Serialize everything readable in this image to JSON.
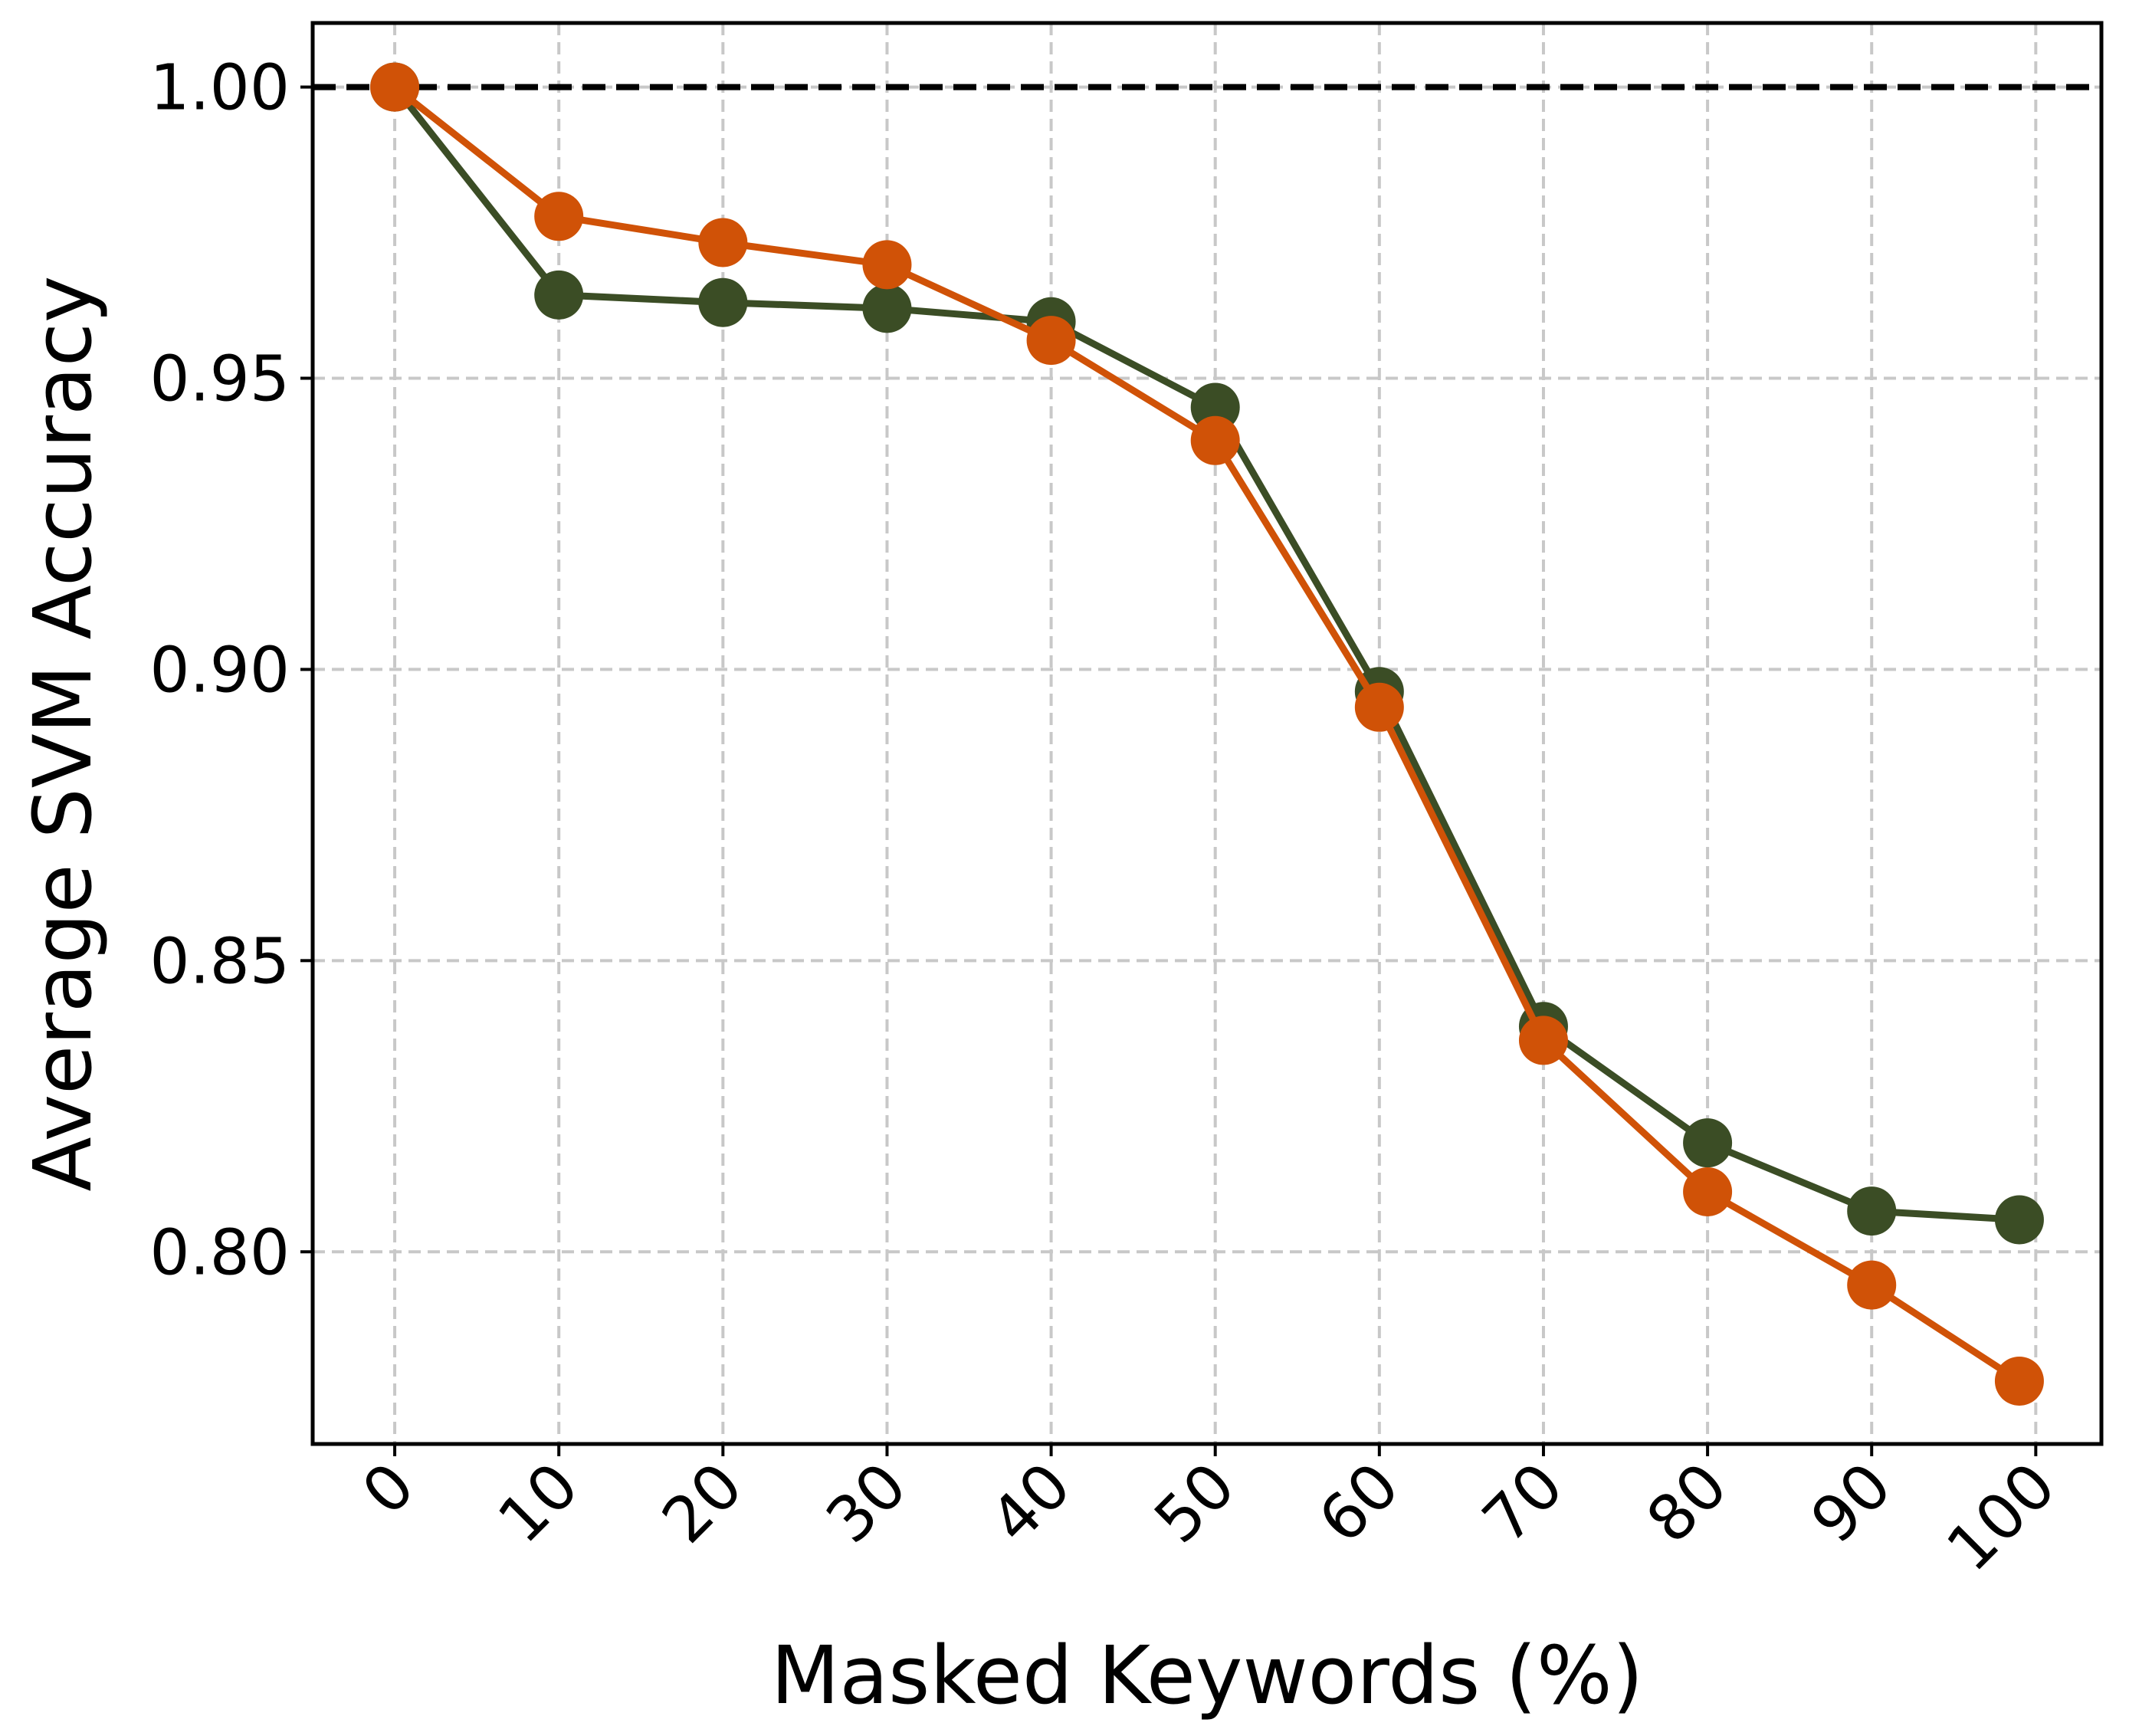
{
  "chart_data": {
    "type": "line",
    "xlabel": "Masked Keywords (%)",
    "ylabel": "Average SVM Accuracy",
    "x_ticks": [
      "0",
      "10",
      "20",
      "30",
      "40",
      "50",
      "60",
      "70",
      "80",
      "90",
      "100"
    ],
    "y_ticks": [
      "0.80",
      "0.85",
      "0.90",
      "0.95",
      "1.00"
    ],
    "xlim": [
      -5,
      104
    ],
    "ylim": [
      0.767,
      1.011
    ],
    "grid": true,
    "reference_line": {
      "y": 1.0,
      "style": "dashed",
      "color": "#000000"
    },
    "series": [
      {
        "color": "#3b4d25",
        "marker": "circle",
        "x": [
          0,
          10,
          20,
          30,
          40,
          50,
          60,
          70,
          80,
          90,
          99
        ],
        "y": [
          1.0,
          0.9643,
          0.963,
          0.962,
          0.9597,
          0.945,
          0.8962,
          0.8387,
          0.8187,
          0.807,
          0.8055
        ]
      },
      {
        "color": "#d05207",
        "marker": "circle",
        "x": [
          0,
          10,
          20,
          30,
          40,
          50,
          60,
          70,
          80,
          90,
          99
        ],
        "y": [
          1.0,
          0.9778,
          0.9733,
          0.9695,
          0.9565,
          0.9393,
          0.8935,
          0.8363,
          0.8103,
          0.7943,
          0.7778
        ]
      }
    ]
  }
}
